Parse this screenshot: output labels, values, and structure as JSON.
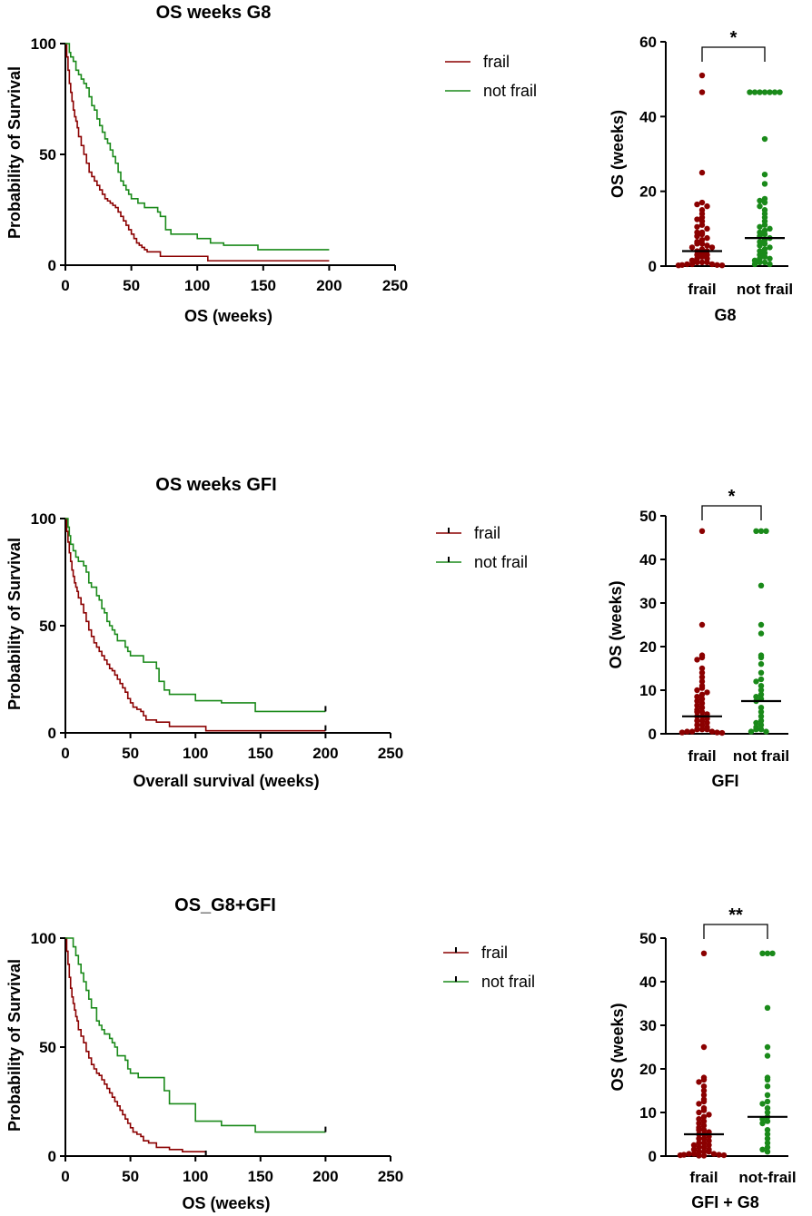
{
  "colors": {
    "frail": "#8b0000",
    "not_frail": "#1a8a1a"
  },
  "chart_data": [
    {
      "type": "line",
      "title": "OS weeks G8",
      "xlabel": "OS (weeks)",
      "ylabel": "Probability of Survival",
      "xlim": [
        0,
        250
      ],
      "ylim": [
        0,
        100
      ],
      "xticks": [
        "0",
        "50",
        "100",
        "150",
        "200",
        "250"
      ],
      "yticks": [
        "0",
        "50",
        "100"
      ],
      "legend": [
        "frail",
        "not frail"
      ],
      "censor_marks": false,
      "series": [
        {
          "name": "frail",
          "color_key": "frail",
          "x": [
            0,
            1,
            2,
            3,
            4,
            5,
            6,
            7,
            8,
            9,
            10,
            12,
            14,
            16,
            18,
            20,
            22,
            24,
            26,
            28,
            30,
            32,
            34,
            36,
            38,
            40,
            42,
            44,
            46,
            48,
            50,
            52,
            54,
            56,
            58,
            60,
            62,
            70,
            72,
            80,
            85,
            90,
            100,
            108,
            120,
            150,
            200
          ],
          "y": [
            100,
            94,
            88,
            82,
            78,
            74,
            70,
            67,
            65,
            62,
            58,
            54,
            50,
            46,
            42,
            40,
            38,
            36,
            34,
            32,
            30,
            29,
            28,
            27,
            26,
            24,
            22,
            20,
            18,
            16,
            14,
            12,
            10,
            9,
            8,
            7,
            6,
            6,
            4,
            4,
            4,
            4,
            4,
            2,
            2,
            2,
            2
          ]
        },
        {
          "name": "not frail",
          "color_key": "not_frail",
          "x": [
            0,
            2,
            3,
            4,
            6,
            8,
            10,
            12,
            14,
            16,
            18,
            20,
            22,
            24,
            26,
            28,
            30,
            32,
            34,
            36,
            38,
            40,
            42,
            44,
            46,
            48,
            50,
            55,
            60,
            65,
            70,
            72,
            76,
            80,
            100,
            110,
            120,
            146,
            150,
            200
          ],
          "y": [
            100,
            100,
            96,
            94,
            92,
            88,
            86,
            84,
            82,
            80,
            76,
            72,
            70,
            66,
            63,
            60,
            57,
            55,
            52,
            49,
            46,
            42,
            38,
            36,
            34,
            32,
            30,
            28,
            26,
            26,
            24,
            22,
            16,
            14,
            12,
            10,
            9,
            7,
            7,
            7
          ]
        }
      ]
    },
    {
      "type": "scatter",
      "xlabel": "G8",
      "ylabel": "OS (weeks)",
      "ylim": [
        0,
        60
      ],
      "yticks": [
        "0",
        "20",
        "40",
        "60"
      ],
      "categories": [
        "frail",
        "not frail"
      ],
      "significance": "*",
      "series": [
        {
          "name": "frail",
          "color_key": "frail",
          "median": 4,
          "values": [
            51,
            46.5,
            25,
            17,
            16.5,
            16,
            15,
            14,
            13,
            12.5,
            12,
            11,
            10.5,
            10,
            9,
            9,
            8.5,
            8,
            7.5,
            7,
            6.5,
            6,
            6,
            5.5,
            5,
            5,
            4.5,
            4,
            4,
            3.5,
            3,
            3,
            2.5,
            2,
            2,
            1.5,
            1,
            1,
            1,
            0.5,
            0.5,
            0.5,
            0.3,
            0.3,
            0.2,
            0.2
          ]
        },
        {
          "name": "not frail",
          "color_key": "not_frail",
          "median": 7.5,
          "values": [
            46.5,
            46.5,
            46.5,
            46.5,
            46.5,
            46.5,
            46.5,
            34,
            24.5,
            22,
            18,
            17.5,
            17,
            16,
            15,
            14,
            13,
            12,
            11,
            10.5,
            10,
            9.5,
            9,
            8.5,
            8,
            7.5,
            7,
            6.5,
            6,
            5.5,
            5,
            4.5,
            4,
            3.5,
            3,
            2.5,
            2,
            2,
            1.5,
            1,
            1,
            0.5,
            0.5
          ]
        }
      ]
    },
    {
      "type": "line",
      "title": "OS weeks GFI",
      "xlabel": "Overall survival (weeks)",
      "ylabel": "Probability of Survival",
      "xlim": [
        0,
        250
      ],
      "ylim": [
        0,
        100
      ],
      "xticks": [
        "0",
        "50",
        "100",
        "150",
        "200",
        "250"
      ],
      "yticks": [
        "0",
        "50",
        "100"
      ],
      "legend": [
        "frail",
        "not frail"
      ],
      "censor_marks": true,
      "series": [
        {
          "name": "frail",
          "color_key": "frail",
          "x": [
            0,
            1,
            2,
            3,
            4,
            5,
            6,
            7,
            8,
            9,
            10,
            12,
            14,
            16,
            18,
            20,
            22,
            24,
            26,
            28,
            30,
            32,
            34,
            36,
            38,
            40,
            42,
            44,
            46,
            48,
            50,
            52,
            55,
            58,
            60,
            62,
            70,
            72,
            80,
            90,
            100,
            108,
            120,
            150,
            200
          ],
          "y": [
            100,
            94,
            89,
            84,
            80,
            76,
            73,
            70,
            68,
            66,
            63,
            60,
            56,
            52,
            48,
            45,
            42,
            40,
            38,
            36,
            34,
            32,
            30,
            29,
            27,
            25,
            23,
            21,
            19,
            16,
            14,
            12,
            11,
            10,
            8,
            6,
            5,
            5,
            3,
            3,
            3,
            1,
            1,
            1,
            1
          ]
        },
        {
          "name": "not frail",
          "color_key": "not_frail",
          "x": [
            0,
            2,
            3,
            4,
            6,
            8,
            10,
            14,
            16,
            18,
            20,
            24,
            26,
            28,
            30,
            32,
            34,
            36,
            38,
            40,
            46,
            48,
            50,
            60,
            70,
            72,
            76,
            80,
            100,
            110,
            120,
            146,
            150,
            200
          ],
          "y": [
            100,
            96,
            92,
            88,
            85,
            82,
            80,
            78,
            75,
            70,
            68,
            64,
            62,
            58,
            56,
            52,
            50,
            48,
            46,
            43,
            40,
            38,
            36,
            33,
            30,
            24,
            20,
            18,
            15,
            15,
            14,
            10,
            10,
            10
          ]
        }
      ]
    },
    {
      "type": "scatter",
      "xlabel": "GFI",
      "ylabel": "OS (weeks)",
      "ylim": [
        0,
        50
      ],
      "yticks": [
        "0",
        "10",
        "20",
        "30",
        "40",
        "50"
      ],
      "categories": [
        "frail",
        "not frail"
      ],
      "significance": "*",
      "series": [
        {
          "name": "frail",
          "color_key": "frail",
          "median": 4,
          "values": [
            46.5,
            25,
            18,
            17.5,
            17,
            15,
            14,
            13,
            12,
            11,
            10.5,
            10,
            9.5,
            9,
            8.5,
            8,
            7.5,
            7,
            6.5,
            6,
            5.5,
            5,
            5,
            4.5,
            4,
            4,
            3.5,
            3,
            3,
            2.5,
            2,
            2,
            1.5,
            1,
            1,
            1,
            0.5,
            0.5,
            0.5,
            0.3,
            0.3,
            0.2
          ]
        },
        {
          "name": "not frail",
          "color_key": "not_frail",
          "median": 7.5,
          "values": [
            46.5,
            46.5,
            46.5,
            34,
            25,
            23,
            18,
            17.5,
            16,
            14,
            12.5,
            12,
            11,
            10,
            9,
            8.5,
            8,
            7.5,
            6,
            5,
            4,
            3,
            2.5,
            2,
            1.5,
            1,
            1,
            0.5,
            0.5
          ]
        }
      ]
    },
    {
      "type": "line",
      "title": "OS_G8+GFI",
      "xlabel": "OS (weeks)",
      "ylabel": "Probability of Survival",
      "xlim": [
        0,
        250
      ],
      "ylim": [
        0,
        100
      ],
      "xticks": [
        "0",
        "50",
        "100",
        "150",
        "200",
        "250"
      ],
      "yticks": [
        "0",
        "50",
        "100"
      ],
      "legend": [
        "frail",
        "not frail"
      ],
      "censor_marks": true,
      "series": [
        {
          "name": "frail",
          "color_key": "frail",
          "x": [
            0,
            1,
            2,
            3,
            4,
            5,
            6,
            7,
            8,
            9,
            10,
            12,
            14,
            16,
            18,
            20,
            22,
            24,
            26,
            28,
            30,
            32,
            34,
            36,
            38,
            40,
            42,
            44,
            46,
            48,
            50,
            52,
            55,
            58,
            60,
            64,
            70,
            80,
            90,
            100,
            108
          ],
          "y": [
            100,
            94,
            88,
            82,
            77,
            73,
            70,
            67,
            64,
            62,
            58,
            55,
            52,
            48,
            45,
            42,
            40,
            38,
            37,
            35,
            33,
            31,
            29,
            27,
            25,
            23,
            21,
            19,
            17,
            15,
            13,
            11,
            10,
            9,
            7,
            6,
            4,
            3,
            2,
            2,
            0
          ]
        },
        {
          "name": "not frail",
          "color_key": "not_frail",
          "x": [
            0,
            4,
            6,
            8,
            10,
            12,
            14,
            16,
            18,
            20,
            24,
            26,
            28,
            30,
            34,
            36,
            38,
            40,
            46,
            48,
            50,
            56,
            60,
            76,
            80,
            100,
            110,
            120,
            146,
            150,
            200
          ],
          "y": [
            100,
            100,
            96,
            92,
            88,
            84,
            80,
            76,
            72,
            68,
            62,
            60,
            58,
            56,
            54,
            52,
            50,
            46,
            44,
            40,
            38,
            36,
            36,
            30,
            24,
            16,
            16,
            14,
            11,
            11,
            11
          ]
        }
      ]
    },
    {
      "type": "scatter",
      "xlabel": "GFI + G8",
      "ylabel": "OS (weeks)",
      "ylim": [
        0,
        50
      ],
      "yticks": [
        "0",
        "10",
        "20",
        "30",
        "40",
        "50"
      ],
      "categories": [
        "frail",
        "not-frail"
      ],
      "significance": "**",
      "series": [
        {
          "name": "frail",
          "color_key": "frail",
          "median": 5,
          "values": [
            46.5,
            25,
            18,
            17.5,
            17,
            16,
            15,
            14,
            13,
            12.5,
            12,
            11,
            10.5,
            10,
            9.5,
            9,
            8.5,
            8,
            7.5,
            7,
            6.5,
            6,
            6,
            5.5,
            5,
            5,
            4.5,
            4,
            4,
            3.5,
            3,
            3,
            2.5,
            2.5,
            2,
            2,
            1.5,
            1.5,
            1,
            1,
            1,
            0.5,
            0.5,
            0.5,
            0.3,
            0.3,
            0.2,
            0.2,
            0.1,
            0.1
          ]
        },
        {
          "name": "not-frail",
          "color_key": "not_frail",
          "median": 9,
          "values": [
            46.5,
            46.5,
            46.5,
            34,
            25,
            23,
            18,
            17.5,
            16,
            14,
            12.5,
            12,
            11,
            10,
            9,
            8.5,
            8,
            7.5,
            6,
            5,
            4,
            3,
            2,
            1.5,
            1
          ]
        }
      ]
    }
  ]
}
